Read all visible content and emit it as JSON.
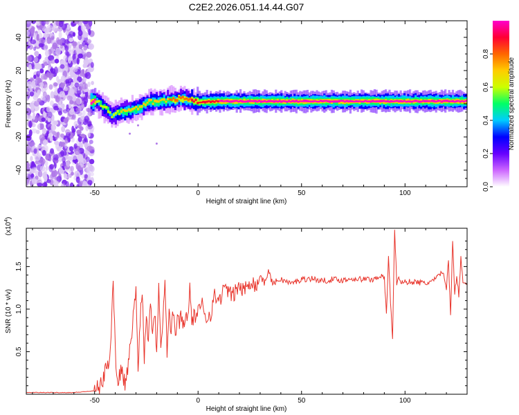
{
  "title": "C2E2.2026.051.14.44.G07",
  "chart_data": [
    {
      "type": "heatmap",
      "xlabel": "Height of straight line (km)",
      "ylabel": "Frequency (Hz)",
      "xlim": [
        -83,
        130
      ],
      "ylim": [
        -50,
        50
      ],
      "x_ticks": [
        -50,
        0,
        50,
        100
      ],
      "y_ticks": [
        -40,
        -20,
        0,
        20,
        40
      ],
      "colorbar": {
        "label": "Normalized spectral amplitude",
        "range": [
          0,
          1
        ],
        "ticks": [
          0.0,
          0.2,
          0.4,
          0.6,
          0.8
        ],
        "colors": [
          "#ffffff",
          "#cc66ff",
          "#6600ff",
          "#0000ff",
          "#00ccff",
          "#00ff66",
          "#ccff00",
          "#ffcc00",
          "#ff6600",
          "#ff0033",
          "#ff00cc"
        ]
      },
      "ridge": [
        {
          "x": -50,
          "f": 2,
          "amp": 0.55
        },
        {
          "x": -45,
          "f": -3,
          "amp": 0.6
        },
        {
          "x": -42,
          "f": -7,
          "amp": 0.55
        },
        {
          "x": -38,
          "f": -5,
          "amp": 0.6
        },
        {
          "x": -33,
          "f": -4,
          "amp": 0.6
        },
        {
          "x": -28,
          "f": -2,
          "amp": 0.65
        },
        {
          "x": -24,
          "f": 1,
          "amp": 0.65
        },
        {
          "x": -15,
          "f": 2,
          "amp": 0.7
        },
        {
          "x": -8,
          "f": 3,
          "amp": 0.75
        },
        {
          "x": 0,
          "f": 1,
          "amp": 0.85
        },
        {
          "x": 10,
          "f": 1.5,
          "amp": 0.9
        },
        {
          "x": 30,
          "f": 1.5,
          "amp": 0.95
        },
        {
          "x": 60,
          "f": 1.5,
          "amp": 0.95
        },
        {
          "x": 90,
          "f": 1.5,
          "amp": 0.95
        },
        {
          "x": 110,
          "f": 1.5,
          "amp": 0.95
        },
        {
          "x": 130,
          "f": 1.5,
          "amp": 0.95
        }
      ]
    },
    {
      "type": "line",
      "xlabel": "Height of straight line (km)",
      "ylabel": "SNR (10 * v/v)",
      "y_multiplier": "(x10",
      "y_multiplier_exp": "4",
      "xlim": [
        -83,
        130
      ],
      "ylim": [
        0,
        1.95
      ],
      "x_ticks": [
        -50,
        0,
        50,
        100
      ],
      "y_ticks": [
        0.5,
        1.0,
        1.5
      ],
      "line_color": "#e8332a",
      "series": [
        {
          "x": [
            -83,
            -60,
            -50,
            -47,
            -45,
            -43,
            -42,
            -41,
            -40,
            -39,
            -37,
            -35,
            -33,
            -31,
            -30,
            -29,
            -28,
            -27,
            -26,
            -25,
            -24,
            -23,
            -22,
            -21,
            -20,
            -19,
            -18,
            -17,
            -16,
            -15,
            -14,
            -13,
            -12,
            -11,
            -10,
            -9,
            -8,
            -7,
            -6,
            -5,
            -4,
            -3,
            -2,
            -1,
            0,
            2,
            4,
            6,
            8,
            10,
            12,
            14,
            16,
            18,
            20,
            22,
            24,
            26,
            28,
            30,
            32,
            34,
            36,
            38,
            40,
            45,
            50,
            55,
            60,
            65,
            70,
            75,
            80,
            85,
            88,
            90,
            91,
            92,
            93,
            94,
            95,
            96,
            97,
            98,
            100,
            105,
            110,
            115,
            118,
            120,
            121,
            122,
            123,
            124,
            125,
            126,
            127,
            128,
            130
          ],
          "y": [
            0.02,
            0.02,
            0.04,
            0.1,
            0.25,
            0.4,
            0.75,
            1.35,
            0.5,
            0.15,
            0.3,
            0.1,
            0.5,
            1.0,
            1.2,
            0.3,
            0.9,
            1.25,
            0.4,
            1.0,
            0.6,
            1.15,
            0.7,
            1.0,
            0.5,
            1.3,
            0.6,
            0.9,
            1.39,
            0.5,
            0.95,
            0.75,
            1.0,
            0.7,
            0.85,
            0.85,
            0.95,
            0.8,
            0.9,
            0.95,
            1.25,
            0.85,
            0.9,
            0.95,
            0.95,
            1.05,
            0.9,
            0.95,
            1.15,
            1.1,
            1.2,
            1.25,
            1.15,
            1.2,
            1.28,
            1.2,
            1.3,
            1.35,
            1.25,
            1.4,
            1.3,
            1.45,
            1.3,
            1.33,
            1.35,
            1.3,
            1.35,
            1.36,
            1.33,
            1.35,
            1.34,
            1.36,
            1.35,
            1.35,
            1.4,
            1.35,
            0.95,
            1.6,
            1.1,
            0.65,
            1.95,
            1.3,
            1.4,
            1.3,
            1.32,
            1.32,
            1.3,
            1.35,
            1.45,
            1.25,
            1.6,
            0.9,
            1.8,
            1.2,
            1.4,
            1.15,
            1.6,
            1.3,
            1.3
          ]
        }
      ]
    }
  ]
}
